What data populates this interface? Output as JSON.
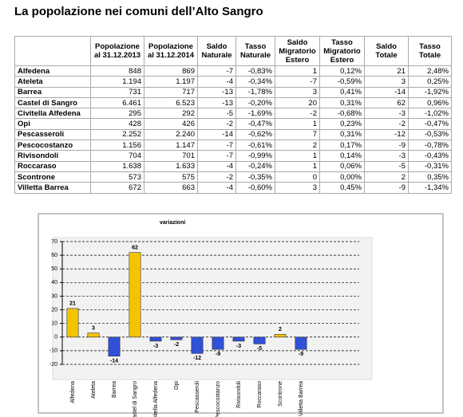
{
  "title": "La popolazione nei comuni dell’Alto Sangro",
  "table": {
    "header": [
      "",
      "Popolazione al 31.12.2013",
      "Popolazione al 31.12.2014",
      "Saldo Naturale",
      "Tasso Naturale",
      "Saldo Migratorio Estero",
      "Tasso Migratorio Estero",
      "Saldo Totale",
      "Tasso Totale"
    ],
    "rows": [
      [
        "Alfedena",
        "848",
        "869",
        "-7",
        "-0,83%",
        "1",
        "0,12%",
        "21",
        "2,48%"
      ],
      [
        "Ateleta",
        "1.194",
        "1.197",
        "-4",
        "-0,34%",
        "-7",
        "-0,59%",
        "3",
        "0,25%"
      ],
      [
        "Barrea",
        "731",
        "717",
        "-13",
        "-1,78%",
        "3",
        "0,41%",
        "-14",
        "-1,92%"
      ],
      [
        "Castel di Sangro",
        "6.461",
        "6.523",
        "-13",
        "-0,20%",
        "20",
        "0,31%",
        "62",
        "0,96%"
      ],
      [
        "Civitella Alfedena",
        "295",
        "292",
        "-5",
        "-1,69%",
        "-2",
        "-0,68%",
        "-3",
        "-1,02%"
      ],
      [
        "Opi",
        "428",
        "426",
        "-2",
        "-0,47%",
        "1",
        "0,23%",
        "-2",
        "-0,47%"
      ],
      [
        "Pescasseroli",
        "2.252",
        "2.240",
        "-14",
        "-0,62%",
        "7",
        "0,31%",
        "-12",
        "-0,53%"
      ],
      [
        "Pescocostanzo",
        "1.156",
        "1.147",
        "-7",
        "-0,61%",
        "2",
        "0,17%",
        "-9",
        "-0,78%"
      ],
      [
        "Rivisondoli",
        "704",
        "701",
        "-7",
        "-0,99%",
        "1",
        "0,14%",
        "-3",
        "-0,43%"
      ],
      [
        "Roccaraso",
        "1.638",
        "1.633",
        "-4",
        "-0,24%",
        "1",
        "0,06%",
        "-5",
        "-0,31%"
      ],
      [
        "Scontrone",
        "573",
        "575",
        "-2",
        "-0,35%",
        "0",
        "0,00%",
        "2",
        "0,35%"
      ],
      [
        "Villetta Barrea",
        "672",
        "663",
        "-4",
        "-0,60%",
        "3",
        "0,45%",
        "-9",
        "-1,34%"
      ]
    ]
  },
  "chart_data": {
    "type": "bar",
    "title": "variazioni",
    "categories": [
      "Alfedena",
      "Ateleta",
      "Barrea",
      "Castel di Sangro",
      "Civitella Alfedena",
      "Opi",
      "Pescasseroli",
      "Pescocostanzo",
      "Rivisondoli",
      "Roccaraso",
      "Scontrone",
      "Villetta Barrea"
    ],
    "values": [
      21,
      3,
      -14,
      62,
      -3,
      -2,
      -12,
      -9,
      -3,
      -5,
      2,
      -9
    ],
    "positive_color": "#f5c400",
    "negative_color": "#3050d8",
    "ylim": [
      -20,
      70
    ],
    "yticks": [
      -20,
      -10,
      0,
      10,
      20,
      30,
      40,
      50,
      60,
      70
    ],
    "grid": true
  }
}
